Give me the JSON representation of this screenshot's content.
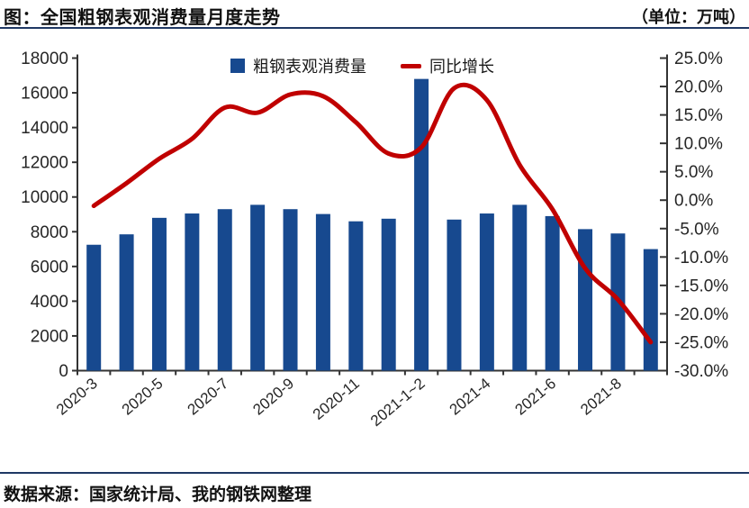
{
  "header": {
    "title": "图：全国粗钢表观消费量月度走势",
    "unit": "（单位：万吨）"
  },
  "footer": {
    "source": "数据来源：国家统计局、我的钢铁网整理"
  },
  "legend": {
    "bar_label": "粗钢表观消费量",
    "line_label": "同比增长"
  },
  "colors": {
    "bar": "#17498F",
    "line": "#C00000",
    "axis": "#333333",
    "tick_text": "#262626",
    "rule": "#1F3864"
  },
  "chart_data": {
    "type": "bar",
    "title": "全国粗钢表观消费量月度走势",
    "categories": [
      "2020-3",
      "2020-4",
      "2020-5",
      "2020-6",
      "2020-7",
      "2020-8",
      "2020-9",
      "2020-10",
      "2020-11",
      "2020-12",
      "2021-1~2",
      "2021-3",
      "2021-4",
      "2021-5",
      "2021-6",
      "2021-7",
      "2021-8",
      "2021-9"
    ],
    "labeled_category_indices": [
      0,
      2,
      4,
      6,
      8,
      10,
      12,
      14,
      16
    ],
    "series": [
      {
        "name": "粗钢表观消费量",
        "type": "bar",
        "axis": "left",
        "unit": "万吨",
        "values": [
          7250,
          7850,
          8800,
          9050,
          9300,
          9550,
          9300,
          9020,
          8600,
          8750,
          16800,
          8700,
          9050,
          9550,
          8900,
          8150,
          7900,
          7000
        ]
      },
      {
        "name": "同比增长",
        "type": "line",
        "axis": "right",
        "unit": "%",
        "values": [
          -1.0,
          3.0,
          7.3,
          10.8,
          16.3,
          15.4,
          18.6,
          18.3,
          13.7,
          8.2,
          9.3,
          19.7,
          17.6,
          6.2,
          -1.6,
          -12.0,
          -17.5,
          -25.0
        ]
      }
    ],
    "left_axis": {
      "min": 0,
      "max": 18000,
      "step": 2000
    },
    "right_axis": {
      "min": -30,
      "max": 25,
      "step": 5,
      "suffix": "%",
      "decimals": 1
    },
    "grid": false,
    "legend_position": "top-center"
  }
}
